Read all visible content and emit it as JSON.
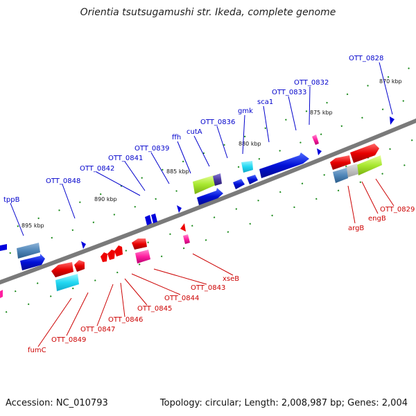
{
  "title": "Orientia tsutsugamushi str. Ikeda, complete genome",
  "footer": {
    "accession": "Accession: NC_010793",
    "topology": "Topology: circular; Length: 2,008,987 bp; Genes: 2,004"
  },
  "kbp_labels": [
    "870 kbp",
    "875 kbp",
    "880 kbp",
    "885 kbp",
    "890 kbp",
    "895 kbp"
  ],
  "forward_genes": [
    "OTT_0828",
    "OTT_0832",
    "OTT_0833",
    "sca1",
    "gmk",
    "OTT_0836",
    "cutA",
    "ffh",
    "OTT_0839",
    "OTT_0841",
    "OTT_0842",
    "OTT_0848",
    "tppB"
  ],
  "reverse_genes": [
    "OTT_0829",
    "engB",
    "argB",
    "xseB",
    "OTT_0843",
    "OTT_0844",
    "OTT_0845",
    "OTT_0846",
    "OTT_0847",
    "OTT_0849",
    "fumC"
  ],
  "colors": {
    "forward_label": "#0000cc",
    "reverse_label": "#cc0000",
    "backbone": "#808080",
    "forward_gene": "#0000dd",
    "reverse_gene": "#ee0000",
    "tick": "#1a8a1a"
  }
}
